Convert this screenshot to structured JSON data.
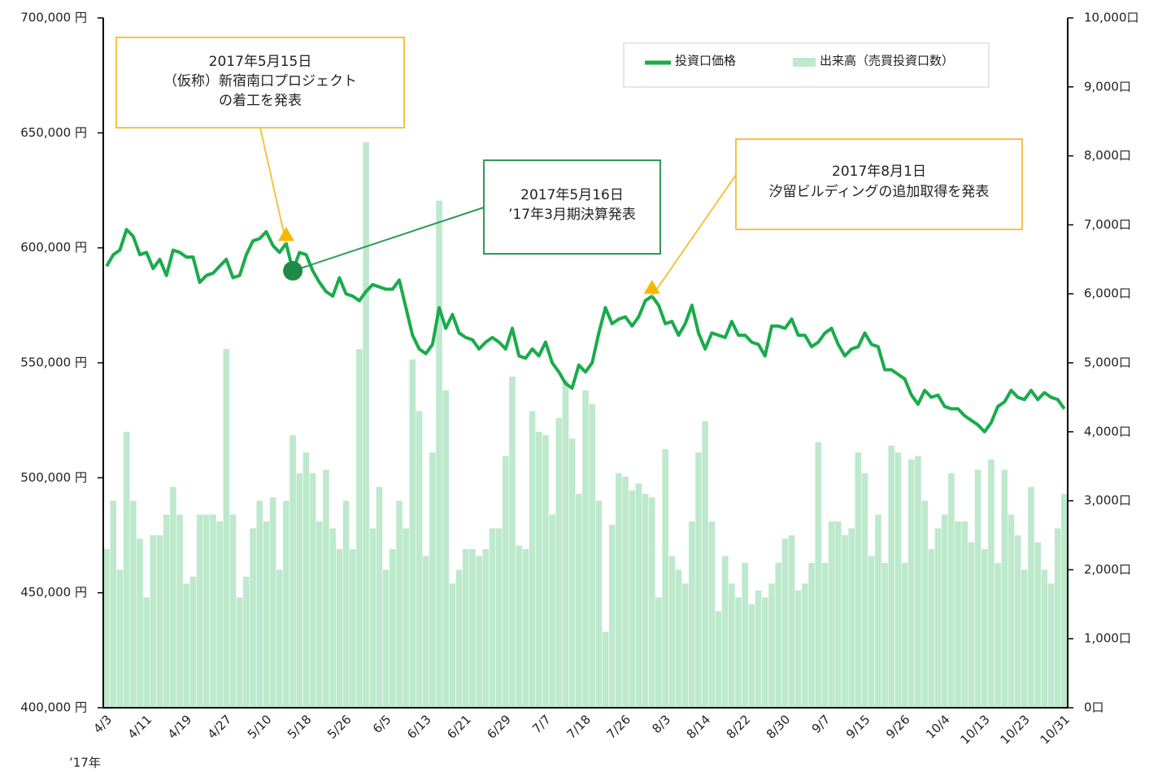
{
  "chart_data": {
    "type": "line-bar",
    "x_note": "’17年",
    "categories": [
      "4/3",
      null,
      null,
      null,
      null,
      null,
      "4/11",
      null,
      null,
      null,
      null,
      null,
      "4/19",
      null,
      null,
      null,
      null,
      null,
      "4/27",
      null,
      null,
      null,
      null,
      null,
      "5/10",
      null,
      null,
      null,
      null,
      null,
      "5/18",
      null,
      null,
      null,
      null,
      null,
      "5/26",
      null,
      null,
      null,
      null,
      null,
      "6/5",
      null,
      null,
      null,
      null,
      null,
      "6/13",
      null,
      null,
      null,
      null,
      null,
      "6/21",
      null,
      null,
      null,
      null,
      null,
      "6/29",
      null,
      null,
      null,
      null,
      null,
      "7/7",
      null,
      null,
      null,
      null,
      null,
      "7/18",
      null,
      null,
      null,
      null,
      null,
      "7/26",
      null,
      null,
      null,
      null,
      null,
      "8/3",
      null,
      null,
      null,
      null,
      null,
      "8/14",
      null,
      null,
      null,
      null,
      null,
      "8/22",
      null,
      null,
      null,
      null,
      null,
      "8/30",
      null,
      null,
      null,
      null,
      null,
      "9/7",
      null,
      null,
      null,
      null,
      null,
      "9/15",
      null,
      null,
      null,
      null,
      null,
      "9/26",
      null,
      null,
      null,
      null,
      null,
      "10/4",
      null,
      null,
      null,
      null,
      null,
      "10/13",
      null,
      null,
      null,
      null,
      null,
      "10/23",
      null,
      null,
      null,
      null,
      null,
      "10/31"
    ],
    "series": [
      {
        "name": "投資口価格",
        "type": "line",
        "color": "#1aab4b",
        "axis": "y",
        "values": [
          592000,
          597000,
          599000,
          608000,
          605000,
          597000,
          598000,
          591000,
          595000,
          588000,
          599000,
          598000,
          596000,
          596000,
          585000,
          588000,
          589000,
          592000,
          595000,
          587000,
          588000,
          597000,
          603000,
          604000,
          607000,
          601000,
          598000,
          602000,
          590000,
          598000,
          597000,
          590000,
          585000,
          581000,
          579000,
          587000,
          580000,
          579000,
          577000,
          581000,
          584000,
          583000,
          582000,
          582000,
          586000,
          574000,
          562000,
          556000,
          554000,
          558000,
          574000,
          565000,
          571000,
          563000,
          561000,
          560000,
          556000,
          559000,
          561000,
          559000,
          556000,
          565000,
          553000,
          552000,
          556000,
          553000,
          559000,
          550000,
          546000,
          541000,
          539000,
          549000,
          546000,
          550000,
          563000,
          574000,
          567000,
          569000,
          570000,
          566000,
          570000,
          577000,
          579000,
          575000,
          567000,
          568000,
          562000,
          567000,
          575000,
          563000,
          556000,
          563000,
          562000,
          561000,
          568000,
          562000,
          562000,
          559000,
          558000,
          553000,
          566000,
          566000,
          565000,
          569000,
          562000,
          562000,
          557000,
          559000,
          563000,
          565000,
          558000,
          553000,
          556000,
          557000,
          563000,
          558000,
          557000,
          547000,
          547000,
          545000,
          543000,
          536000,
          532000,
          538000,
          535000,
          536000,
          531000,
          530000,
          530000,
          527000,
          525000,
          523000,
          520000,
          524000,
          531000,
          533000,
          538000,
          535000,
          534000,
          538000,
          534000,
          537000,
          535000,
          534000,
          530000
        ]
      },
      {
        "name": "出来高（売買投資口数）",
        "type": "bar",
        "color": "#bde9cc",
        "axis": "y2",
        "values": [
          2300,
          3000,
          2000,
          4000,
          3000,
          2450,
          1600,
          2500,
          2500,
          2800,
          3200,
          2800,
          1800,
          1900,
          2800,
          2800,
          2800,
          2700,
          5200,
          2800,
          1600,
          1900,
          2600,
          3000,
          2700,
          3050,
          2000,
          3000,
          3950,
          3400,
          3700,
          3400,
          2700,
          3450,
          2600,
          2300,
          3000,
          2300,
          5200,
          8200,
          2600,
          3200,
          2000,
          2300,
          3000,
          2600,
          5050,
          4300,
          2200,
          3700,
          7350,
          4600,
          1800,
          2000,
          2300,
          2300,
          2200,
          2300,
          2600,
          2600,
          3650,
          4800,
          2350,
          2300,
          4300,
          4000,
          3950,
          2800,
          4200,
          4750,
          3900,
          3100,
          4600,
          4400,
          3000,
          1100,
          2650,
          3400,
          3350,
          3150,
          3250,
          3100,
          3050,
          1600,
          3750,
          2200,
          2000,
          1800,
          2700,
          3700,
          4150,
          2700,
          1400,
          2200,
          1800,
          1600,
          2100,
          1500,
          1700,
          1600,
          1800,
          2100,
          2450,
          2500,
          1700,
          1800,
          2100,
          3850,
          2100,
          2700,
          2700,
          2500,
          2600,
          3700,
          3400,
          2200,
          2800,
          2100,
          3800,
          3700,
          2100,
          3600,
          3650,
          3000,
          2300,
          2600,
          2800,
          3400,
          2700,
          2700,
          2400,
          3450,
          2300,
          3600,
          2100,
          3450,
          2800,
          2500,
          2000,
          3200,
          2400,
          2000,
          1800,
          2600,
          3100
        ]
      }
    ],
    "ylim": [
      400000,
      700000
    ],
    "yticks": [
      {
        "value": 400000,
        "label": "400,000 円"
      },
      {
        "value": 450000,
        "label": "450,000 円"
      },
      {
        "value": 500000,
        "label": "500,000 円"
      },
      {
        "value": 550000,
        "label": "550,000 円"
      },
      {
        "value": 600000,
        "label": "600,000 円"
      },
      {
        "value": 650000,
        "label": "650,000 円"
      },
      {
        "value": 700000,
        "label": "700,000 円"
      }
    ],
    "y2lim": [
      0,
      10000
    ],
    "y2ticks": [
      {
        "value": 0,
        "label": "0口"
      },
      {
        "value": 1000,
        "label": "1,000口"
      },
      {
        "value": 2000,
        "label": "2,000口"
      },
      {
        "value": 3000,
        "label": "3,000口"
      },
      {
        "value": 4000,
        "label": "4,000口"
      },
      {
        "value": 5000,
        "label": "5,000口"
      },
      {
        "value": 6000,
        "label": "6,000口"
      },
      {
        "value": 7000,
        "label": "7,000口"
      },
      {
        "value": 8000,
        "label": "8,000口"
      },
      {
        "value": 9000,
        "label": "9,000口"
      },
      {
        "value": 10000,
        "label": "10,000口"
      }
    ],
    "annotations": [
      {
        "lines": [
          "2017年5月15日",
          "（仮称）新宿南口プロジェクト",
          "の着工を発表"
        ],
        "color": "#f5c242",
        "marker": "triangle",
        "marker_color": "#f5b800"
      },
      {
        "lines": [
          "2017年5月16日",
          "’17年3月期決算発表"
        ],
        "color": "#2e9a55",
        "marker": "circle",
        "marker_color": "#1e8a46"
      },
      {
        "lines": [
          "2017年8月1日",
          "汐留ビルディングの追加取得を発表"
        ],
        "color": "#f5c242",
        "marker": "triangle",
        "marker_color": "#f5b800"
      }
    ],
    "legend": "top-right"
  }
}
